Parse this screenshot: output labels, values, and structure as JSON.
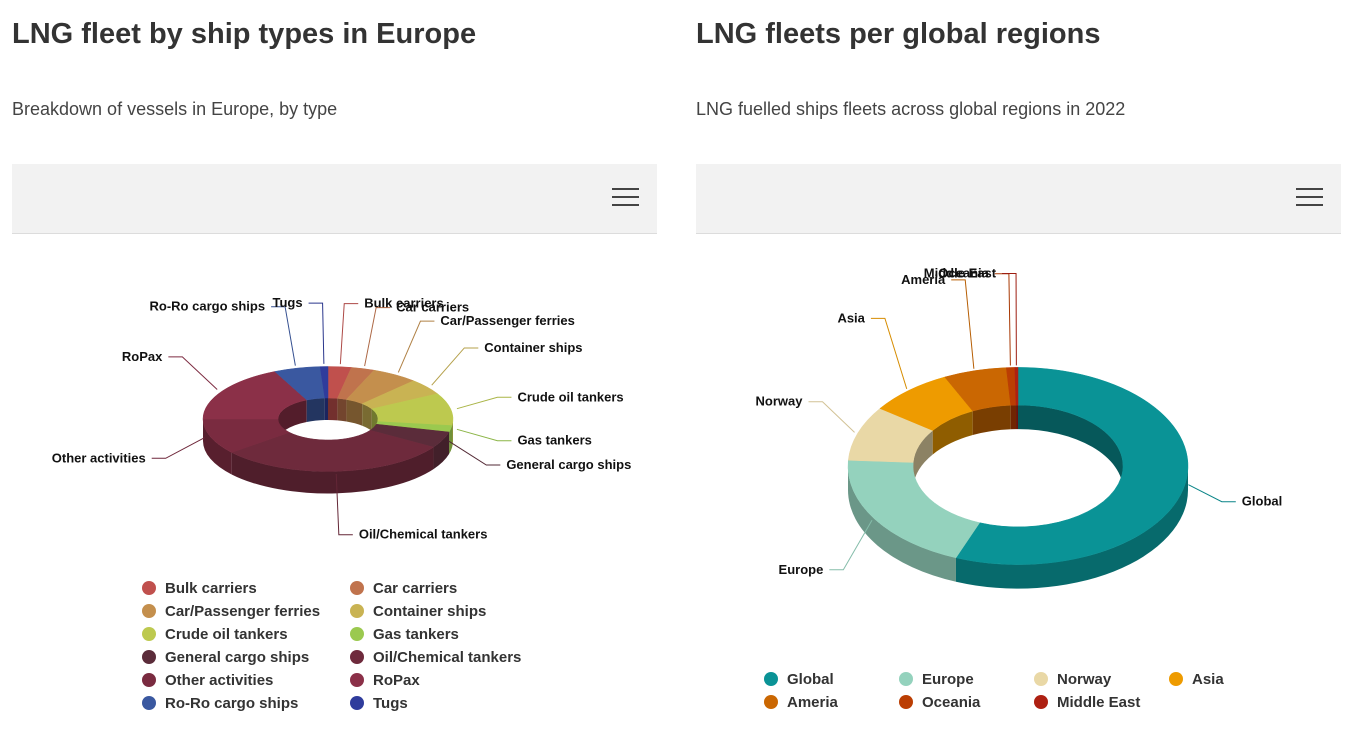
{
  "left": {
    "title": "LNG fleet by ship types in Europe",
    "subtitle": "Breakdown of vessels in Europe, by type",
    "menu_icon": "hamburger-menu-icon"
  },
  "right": {
    "title": "LNG fleets per global regions",
    "subtitle": "LNG fuelled ships fleets across global regions in 2022",
    "menu_icon": "hamburger-menu-icon"
  },
  "chart_data": [
    {
      "type": "pie",
      "style": "3d-donut",
      "legend_position": "bottom",
      "legend_columns": 2,
      "slices": [
        {
          "name": "Bulk carriers",
          "value": 3,
          "color": "#c0504d"
        },
        {
          "name": "Car carriers",
          "value": 3,
          "color": "#c0734d"
        },
        {
          "name": "Car/Passenger ferries",
          "value": 6,
          "color": "#c48f4d"
        },
        {
          "name": "Container ships",
          "value": 5,
          "color": "#c9b353"
        },
        {
          "name": "Crude oil tankers",
          "value": 10,
          "color": "#bdc94f"
        },
        {
          "name": "Gas tankers",
          "value": 2,
          "color": "#9bc94f"
        },
        {
          "name": "General cargo ships",
          "value": 5,
          "color": "#5b2c3a"
        },
        {
          "name": "Oil/Chemical tankers",
          "value": 30,
          "color": "#6e2a3c"
        },
        {
          "name": "Other activities",
          "value": 11,
          "color": "#7a2b40"
        },
        {
          "name": "RoPax",
          "value": 18,
          "color": "#8b3048"
        },
        {
          "name": "Ro-Ro cargo ships",
          "value": 6,
          "color": "#3a58a0"
        },
        {
          "name": "Tugs",
          "value": 1,
          "color": "#2f3c9c"
        }
      ]
    },
    {
      "type": "pie",
      "style": "3d-donut",
      "legend_position": "bottom",
      "legend_columns": 4,
      "slices": [
        {
          "name": "Global",
          "value": 56,
          "color": "#0a9396"
        },
        {
          "name": "Europe",
          "value": 20,
          "color": "#94d2bd"
        },
        {
          "name": "Norway",
          "value": 9,
          "color": "#e9d8a6"
        },
        {
          "name": "Asia",
          "value": 8,
          "color": "#ee9b00"
        },
        {
          "name": "Ameria",
          "value": 6,
          "color": "#ca6702"
        },
        {
          "name": "Oceania",
          "value": 0.8,
          "color": "#bb3e03"
        },
        {
          "name": "Middle East",
          "value": 0.3,
          "color": "#ae2012"
        }
      ]
    }
  ]
}
